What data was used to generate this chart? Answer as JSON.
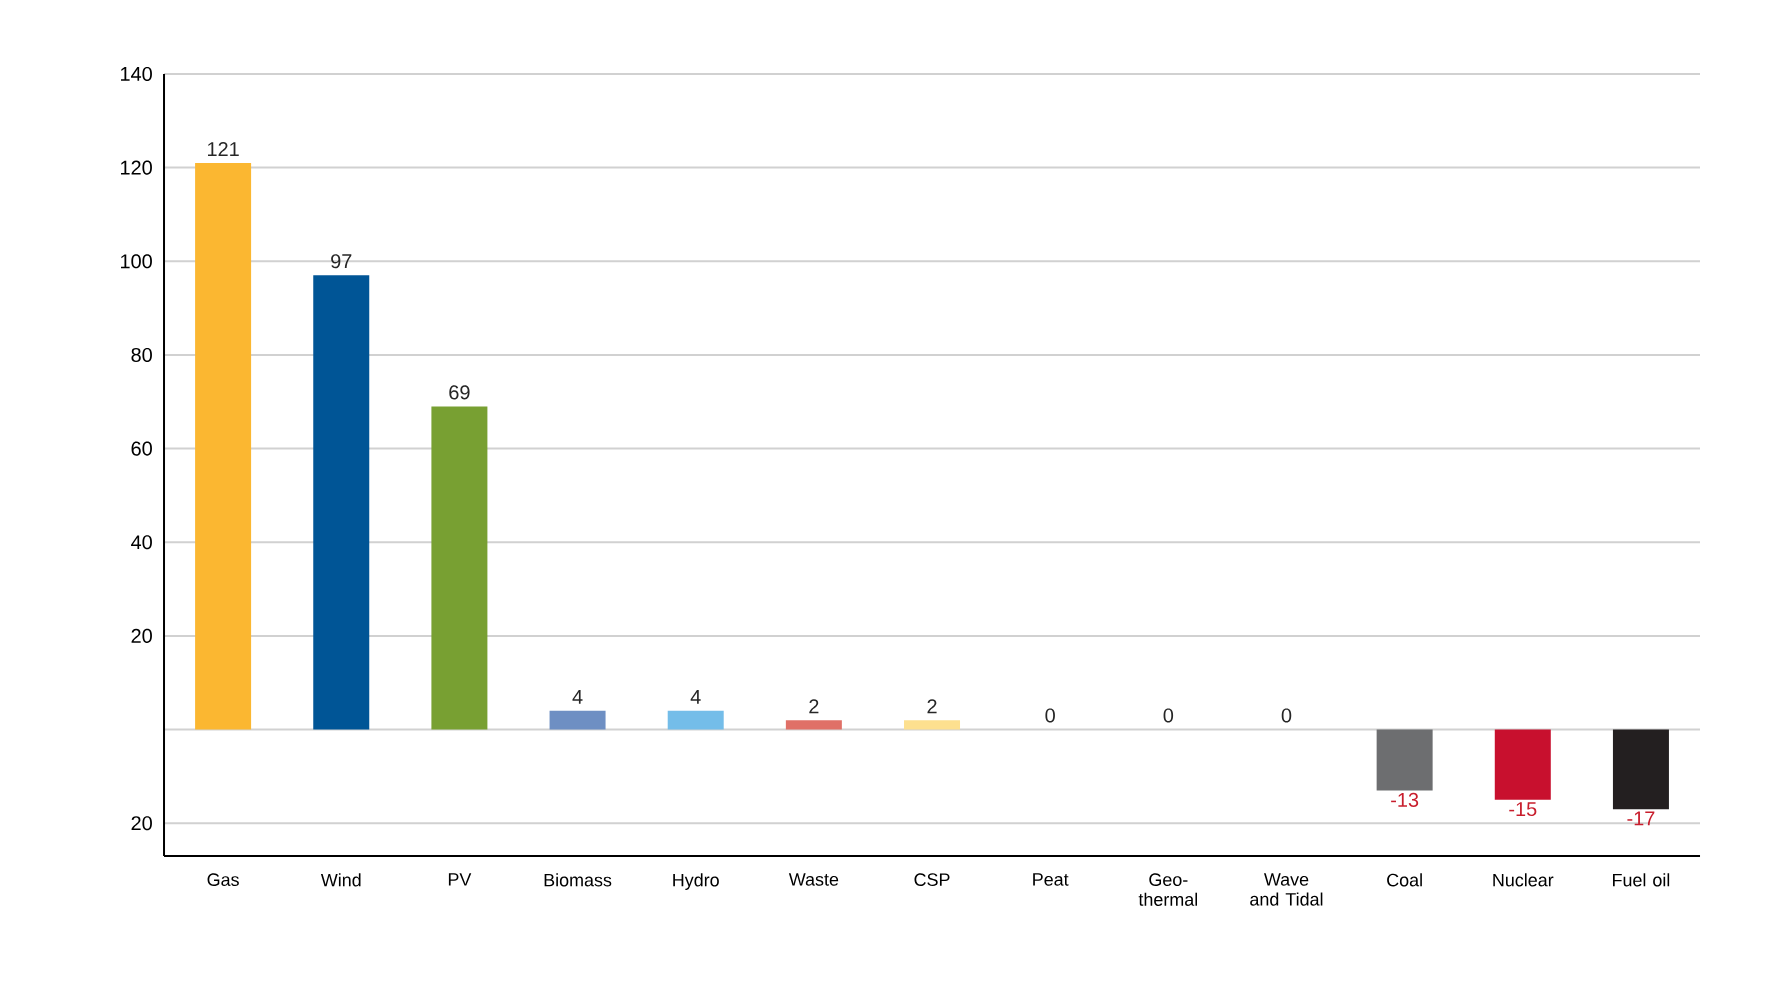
{
  "chart_data": {
    "type": "bar",
    "categories": [
      "Gas",
      "Wind",
      "PV",
      "Biomass",
      "Hydro",
      "Waste",
      "CSP",
      "Peat",
      "Geo-thermal",
      "Wave and Tidal",
      "Coal",
      "Nuclear",
      "Fuel oil"
    ],
    "values": [
      121,
      97,
      69,
      4,
      4,
      2,
      2,
      0,
      0,
      0,
      -13,
      -15,
      -17
    ],
    "colors": [
      "#fbb731",
      "#005596",
      "#78a032",
      "#6e8fc3",
      "#74bde9",
      "#e07067",
      "#fde08f",
      "#b5cc8f",
      "#b8c7dd",
      "#e6ecc9",
      "#6d6e70",
      "#c8102e",
      "#231f20"
    ],
    "ylim": [
      -27,
      140
    ],
    "yticks": [
      {
        "value": -20,
        "label": "20"
      },
      {
        "value": 0,
        "label": null
      },
      20,
      40,
      60,
      80,
      100,
      120,
      140
    ],
    "grid": "y",
    "data_labels": true
  }
}
